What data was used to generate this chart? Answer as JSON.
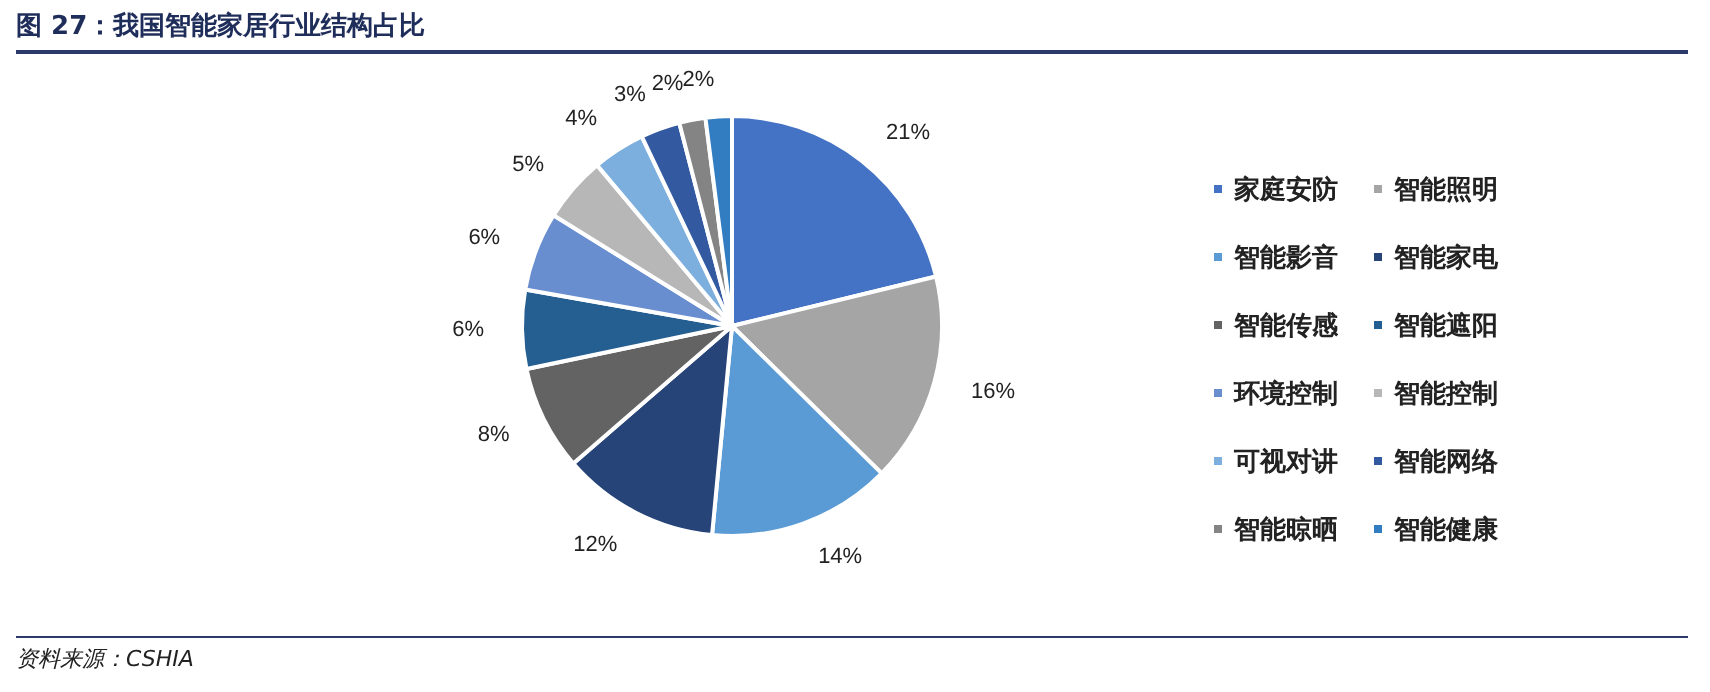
{
  "chart_data": {
    "type": "pie",
    "title": "图 27：我国智能家居行业结构占比",
    "categories": [
      "家庭安防",
      "智能照明",
      "智能影音",
      "智能家电",
      "智能传感",
      "智能遮阳",
      "环境控制",
      "智能控制",
      "可视对讲",
      "智能网络",
      "智能晾晒",
      "智能健康"
    ],
    "values": [
      21,
      16,
      14,
      12,
      8,
      6,
      6,
      5,
      4,
      3,
      2,
      2
    ],
    "value_labels": [
      "21%",
      "16%",
      "14%",
      "12%",
      "8%",
      "6%",
      "6%",
      "5%",
      "4%",
      "3%",
      "2%",
      "2%"
    ],
    "colors": [
      "#4472c4",
      "#a5a5a5",
      "#5b9bd5",
      "#264478",
      "#636363",
      "#255e91",
      "#698ed0",
      "#b7b7b7",
      "#7cafdd",
      "#335aa1",
      "#848484",
      "#327dc2"
    ],
    "legend": "right",
    "annotations": [
      "资料来源：CSHIA"
    ]
  }
}
